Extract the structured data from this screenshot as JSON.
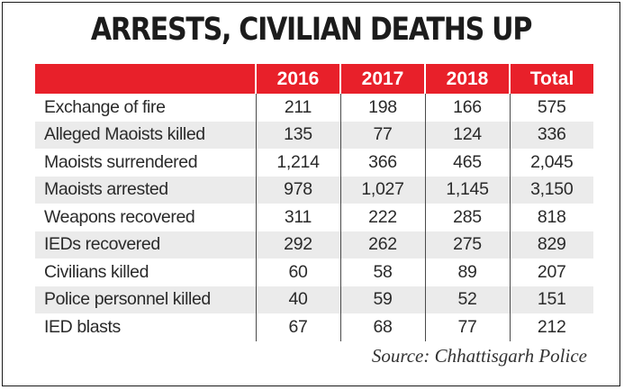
{
  "title": "ARRESTS, CIVILIAN DEATHS UP",
  "table": {
    "headers": [
      "",
      "2016",
      "2017",
      "2018",
      "Total"
    ],
    "rows": [
      {
        "label": "Exchange of fire",
        "v2016": "211",
        "v2017": "198",
        "v2018": "166",
        "total": "575"
      },
      {
        "label": "Alleged Maoists killed",
        "v2016": "135",
        "v2017": "77",
        "v2018": "124",
        "total": "336"
      },
      {
        "label": "Maoists surrendered",
        "v2016": "1,214",
        "v2017": "366",
        "v2018": "465",
        "total": "2,045"
      },
      {
        "label": "Maoists arrested",
        "v2016": "978",
        "v2017": "1,027",
        "v2018": "1,145",
        "total": "3,150"
      },
      {
        "label": "Weapons recovered",
        "v2016": "311",
        "v2017": "222",
        "v2018": "285",
        "total": "818"
      },
      {
        "label": "IEDs recovered",
        "v2016": "292",
        "v2017": "262",
        "v2018": "275",
        "total": "829"
      },
      {
        "label": "Civilians killed",
        "v2016": "60",
        "v2017": "58",
        "v2018": "89",
        "total": "207"
      },
      {
        "label": "Police personnel killed",
        "v2016": "40",
        "v2017": "59",
        "v2018": "52",
        "total": "151"
      },
      {
        "label": "IED blasts",
        "v2016": "67",
        "v2017": "68",
        "v2018": "77",
        "total": "212"
      }
    ]
  },
  "source": "Source: Chhattisgarh Police",
  "colors": {
    "header_background": "#e8202a",
    "header_text": "#ffffff",
    "shaded_row": "#ebebeb",
    "body_text": "#2a2a2a"
  }
}
